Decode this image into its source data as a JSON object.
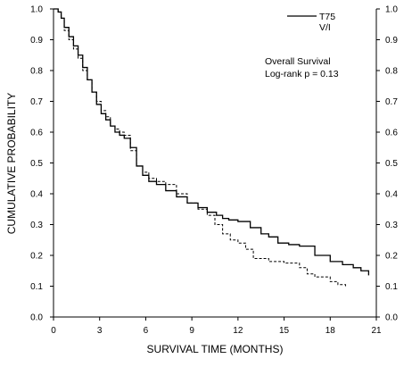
{
  "chart_data": {
    "type": "line",
    "xlabel": "SURVIVAL TIME (MONTHS)",
    "ylabel": "CUMULATIVE PROBABILITY",
    "xlim": [
      0,
      21
    ],
    "ylim": [
      0,
      1
    ],
    "xticks": [
      "0",
      "3",
      "6",
      "9",
      "12",
      "15",
      "18",
      "21"
    ],
    "yticks": [
      "0.0",
      "0.1",
      "0.2",
      "0.3",
      "0.4",
      "0.5",
      "0.6",
      "0.7",
      "0.8",
      "0.9",
      "1.0"
    ],
    "grid": false,
    "legend_position": "top-right",
    "annotations": [
      "Overall Survival",
      "Log-rank  p = 0.13"
    ],
    "series": [
      {
        "name": "T75",
        "style": "solid",
        "x": [
          0,
          0.3,
          0.5,
          0.7,
          1.0,
          1.3,
          1.6,
          1.9,
          2.2,
          2.5,
          2.8,
          3.1,
          3.4,
          3.7,
          4.0,
          4.3,
          4.6,
          5.0,
          5.4,
          5.8,
          6.2,
          6.7,
          7.3,
          8.0,
          8.7,
          9.4,
          10.0,
          10.6,
          11.0,
          11.4,
          12.0,
          12.8,
          13.5,
          14.0,
          14.6,
          15.3,
          16.0,
          17.0,
          18.0,
          18.8,
          19.5,
          20.0,
          20.5
        ],
        "values": [
          1.0,
          0.99,
          0.97,
          0.94,
          0.91,
          0.88,
          0.85,
          0.81,
          0.77,
          0.73,
          0.69,
          0.66,
          0.64,
          0.62,
          0.6,
          0.59,
          0.58,
          0.55,
          0.49,
          0.46,
          0.44,
          0.43,
          0.41,
          0.39,
          0.37,
          0.355,
          0.34,
          0.33,
          0.32,
          0.315,
          0.31,
          0.29,
          0.27,
          0.26,
          0.24,
          0.235,
          0.23,
          0.2,
          0.18,
          0.17,
          0.16,
          0.15,
          0.135
        ]
      },
      {
        "name": "V/I",
        "style": "dashed",
        "x": [
          0,
          0.3,
          0.5,
          0.7,
          1.0,
          1.3,
          1.6,
          1.9,
          2.2,
          2.5,
          2.8,
          3.1,
          3.4,
          3.7,
          4.0,
          4.3,
          4.6,
          5.0,
          5.4,
          5.8,
          6.2,
          6.7,
          7.3,
          8.0,
          8.7,
          9.4,
          10.0,
          10.5,
          11.0,
          11.5,
          12.0,
          12.5,
          13.0,
          14.0,
          15.0,
          16.0,
          16.5,
          17.0,
          18.0,
          18.5,
          19.0
        ],
        "values": [
          1.0,
          0.99,
          0.97,
          0.93,
          0.9,
          0.87,
          0.84,
          0.8,
          0.77,
          0.73,
          0.7,
          0.67,
          0.65,
          0.62,
          0.61,
          0.6,
          0.59,
          0.54,
          0.49,
          0.47,
          0.45,
          0.44,
          0.43,
          0.4,
          0.37,
          0.35,
          0.33,
          0.3,
          0.27,
          0.25,
          0.24,
          0.22,
          0.19,
          0.18,
          0.175,
          0.16,
          0.14,
          0.13,
          0.115,
          0.105,
          0.1
        ]
      }
    ]
  }
}
